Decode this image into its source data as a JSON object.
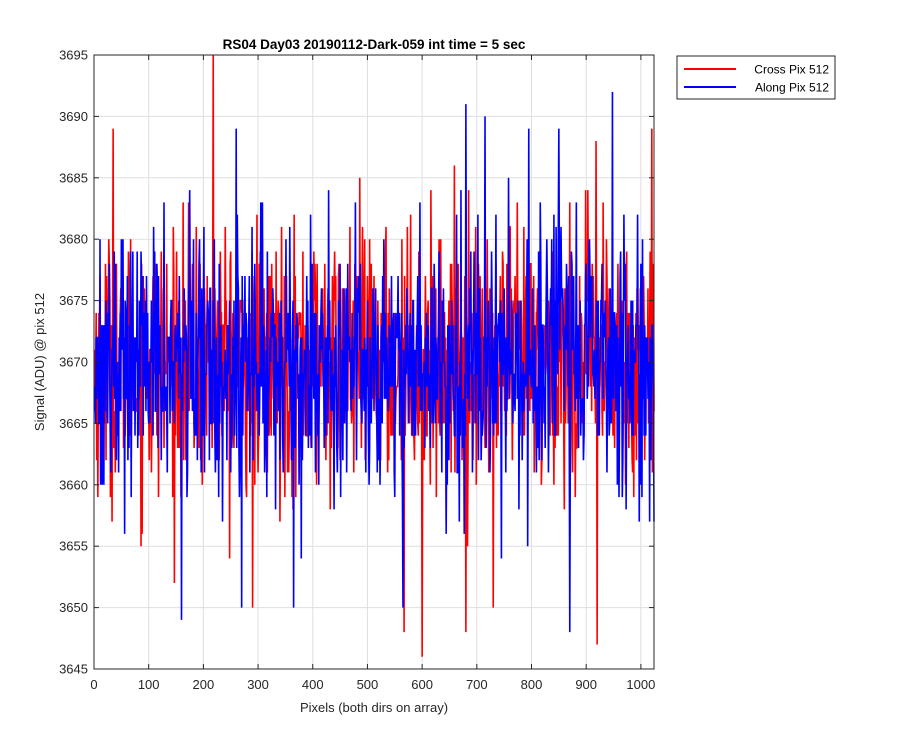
{
  "chart_data": {
    "type": "line",
    "title": "RS04 Day03 20190112-Dark-059 int time = 5 sec",
    "xlabel": "Pixels (both dirs on array)",
    "ylabel": "Signal (ADU) @ pix 512",
    "xlim": [
      0,
      1024
    ],
    "ylim": [
      3645,
      3695
    ],
    "xticks": [
      0,
      100,
      200,
      300,
      400,
      500,
      600,
      700,
      800,
      900,
      1000
    ],
    "yticks": [
      3645,
      3650,
      3655,
      3660,
      3665,
      3670,
      3675,
      3680,
      3685,
      3690,
      3695
    ],
    "grid": true,
    "legend_placement": "outside-top-right",
    "series": [
      {
        "name": "Cross Pix 512",
        "color": "#ff0000",
        "x_range": [
          1,
          1024
        ],
        "points": 1024,
        "mean": 3670,
        "range": [
          3646,
          3695
        ],
        "notable_peaks": [
          [
            218,
            3695
          ],
          [
            35,
            3689
          ],
          [
            680,
            3690
          ],
          [
            1020,
            3689
          ],
          [
            918,
            3688
          ]
        ],
        "notable_troughs": [
          [
            600,
            3646
          ],
          [
            567,
            3648
          ],
          [
            680,
            3648
          ],
          [
            920,
            3647
          ],
          [
            290,
            3650
          ],
          [
            730,
            3650
          ]
        ]
      },
      {
        "name": "Along Pix 512",
        "color": "#0000ff",
        "x_range": [
          1,
          1024
        ],
        "points": 1024,
        "mean": 3670,
        "range": [
          3648,
          3692
        ],
        "notable_peaks": [
          [
            948,
            3692
          ],
          [
            680,
            3691
          ],
          [
            715,
            3690
          ],
          [
            260,
            3689
          ],
          [
            795,
            3689
          ],
          [
            850,
            3689
          ]
        ],
        "notable_troughs": [
          [
            160,
            3649
          ],
          [
            870,
            3648
          ],
          [
            565,
            3650
          ],
          [
            270,
            3650
          ],
          [
            365,
            3650
          ],
          [
            745,
            3654
          ]
        ]
      }
    ]
  }
}
